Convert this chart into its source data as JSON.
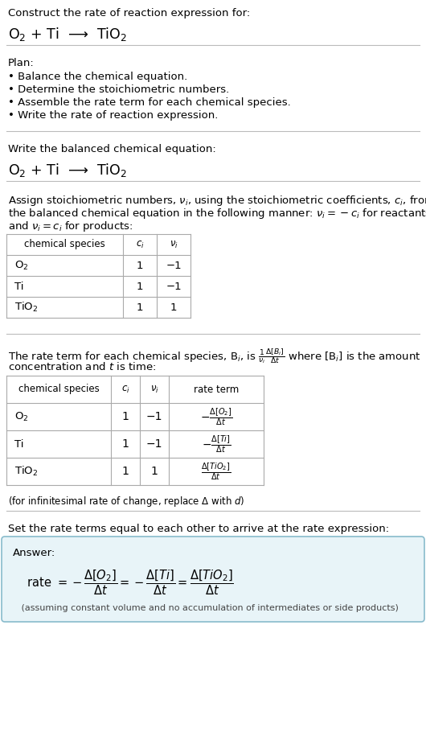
{
  "bg_color": "#ffffff",
  "text_color": "#000000",
  "section1_title": "Construct the rate of reaction expression for:",
  "section1_reaction": "O$_2$ + Ti  ⟶  TiO$_2$",
  "section2_title": "Plan:",
  "section2_bullets": [
    "• Balance the chemical equation.",
    "• Determine the stoichiometric numbers.",
    "• Assemble the rate term for each chemical species.",
    "• Write the rate of reaction expression."
  ],
  "section3_title": "Write the balanced chemical equation:",
  "section3_reaction": "O$_2$ + Ti  ⟶  TiO$_2$",
  "section4_intro_1": "Assign stoichiometric numbers, $\\nu_i$, using the stoichiometric coefficients, $c_i$, from",
  "section4_intro_2": "the balanced chemical equation in the following manner: $\\nu_i = -c_i$ for reactants",
  "section4_intro_3": "and $\\nu_i = c_i$ for products:",
  "table1_headers": [
    "chemical species",
    "$c_i$",
    "$\\nu_i$"
  ],
  "table1_rows": [
    [
      "O$_2$",
      "1",
      "−1"
    ],
    [
      "Ti",
      "1",
      "−1"
    ],
    [
      "TiO$_2$",
      "1",
      "1"
    ]
  ],
  "section5_intro_1": "The rate term for each chemical species, B$_i$, is $\\frac{1}{\\nu_i}\\frac{\\Delta[B_i]}{\\Delta t}$ where [B$_i$] is the amount",
  "section5_intro_2": "concentration and $t$ is time:",
  "table2_headers": [
    "chemical species",
    "$c_i$",
    "$\\nu_i$",
    "rate term"
  ],
  "table2_rows": [
    [
      "O$_2$",
      "1",
      "−1",
      "$-\\frac{\\Delta[O_2]}{\\Delta t}$"
    ],
    [
      "Ti",
      "1",
      "−1",
      "$-\\frac{\\Delta[Ti]}{\\Delta t}$"
    ],
    [
      "TiO$_2$",
      "1",
      "1",
      "$\\frac{\\Delta[TiO_2]}{\\Delta t}$"
    ]
  ],
  "infinitesimal_note": "(for infinitesimal rate of change, replace Δ with $d$)",
  "section6_title": "Set the rate terms equal to each other to arrive at the rate expression:",
  "answer_label": "Answer:",
  "answer_box_color": "#e8f4f8",
  "answer_box_border": "#88bbcc",
  "answer_rate": "   rate $= -\\dfrac{\\Delta[O_2]}{\\Delta t} = -\\dfrac{\\Delta[Ti]}{\\Delta t} = \\dfrac{\\Delta[TiO_2]}{\\Delta t}$",
  "answer_note": "   (assuming constant volume and no accumulation of intermediates or side products)"
}
